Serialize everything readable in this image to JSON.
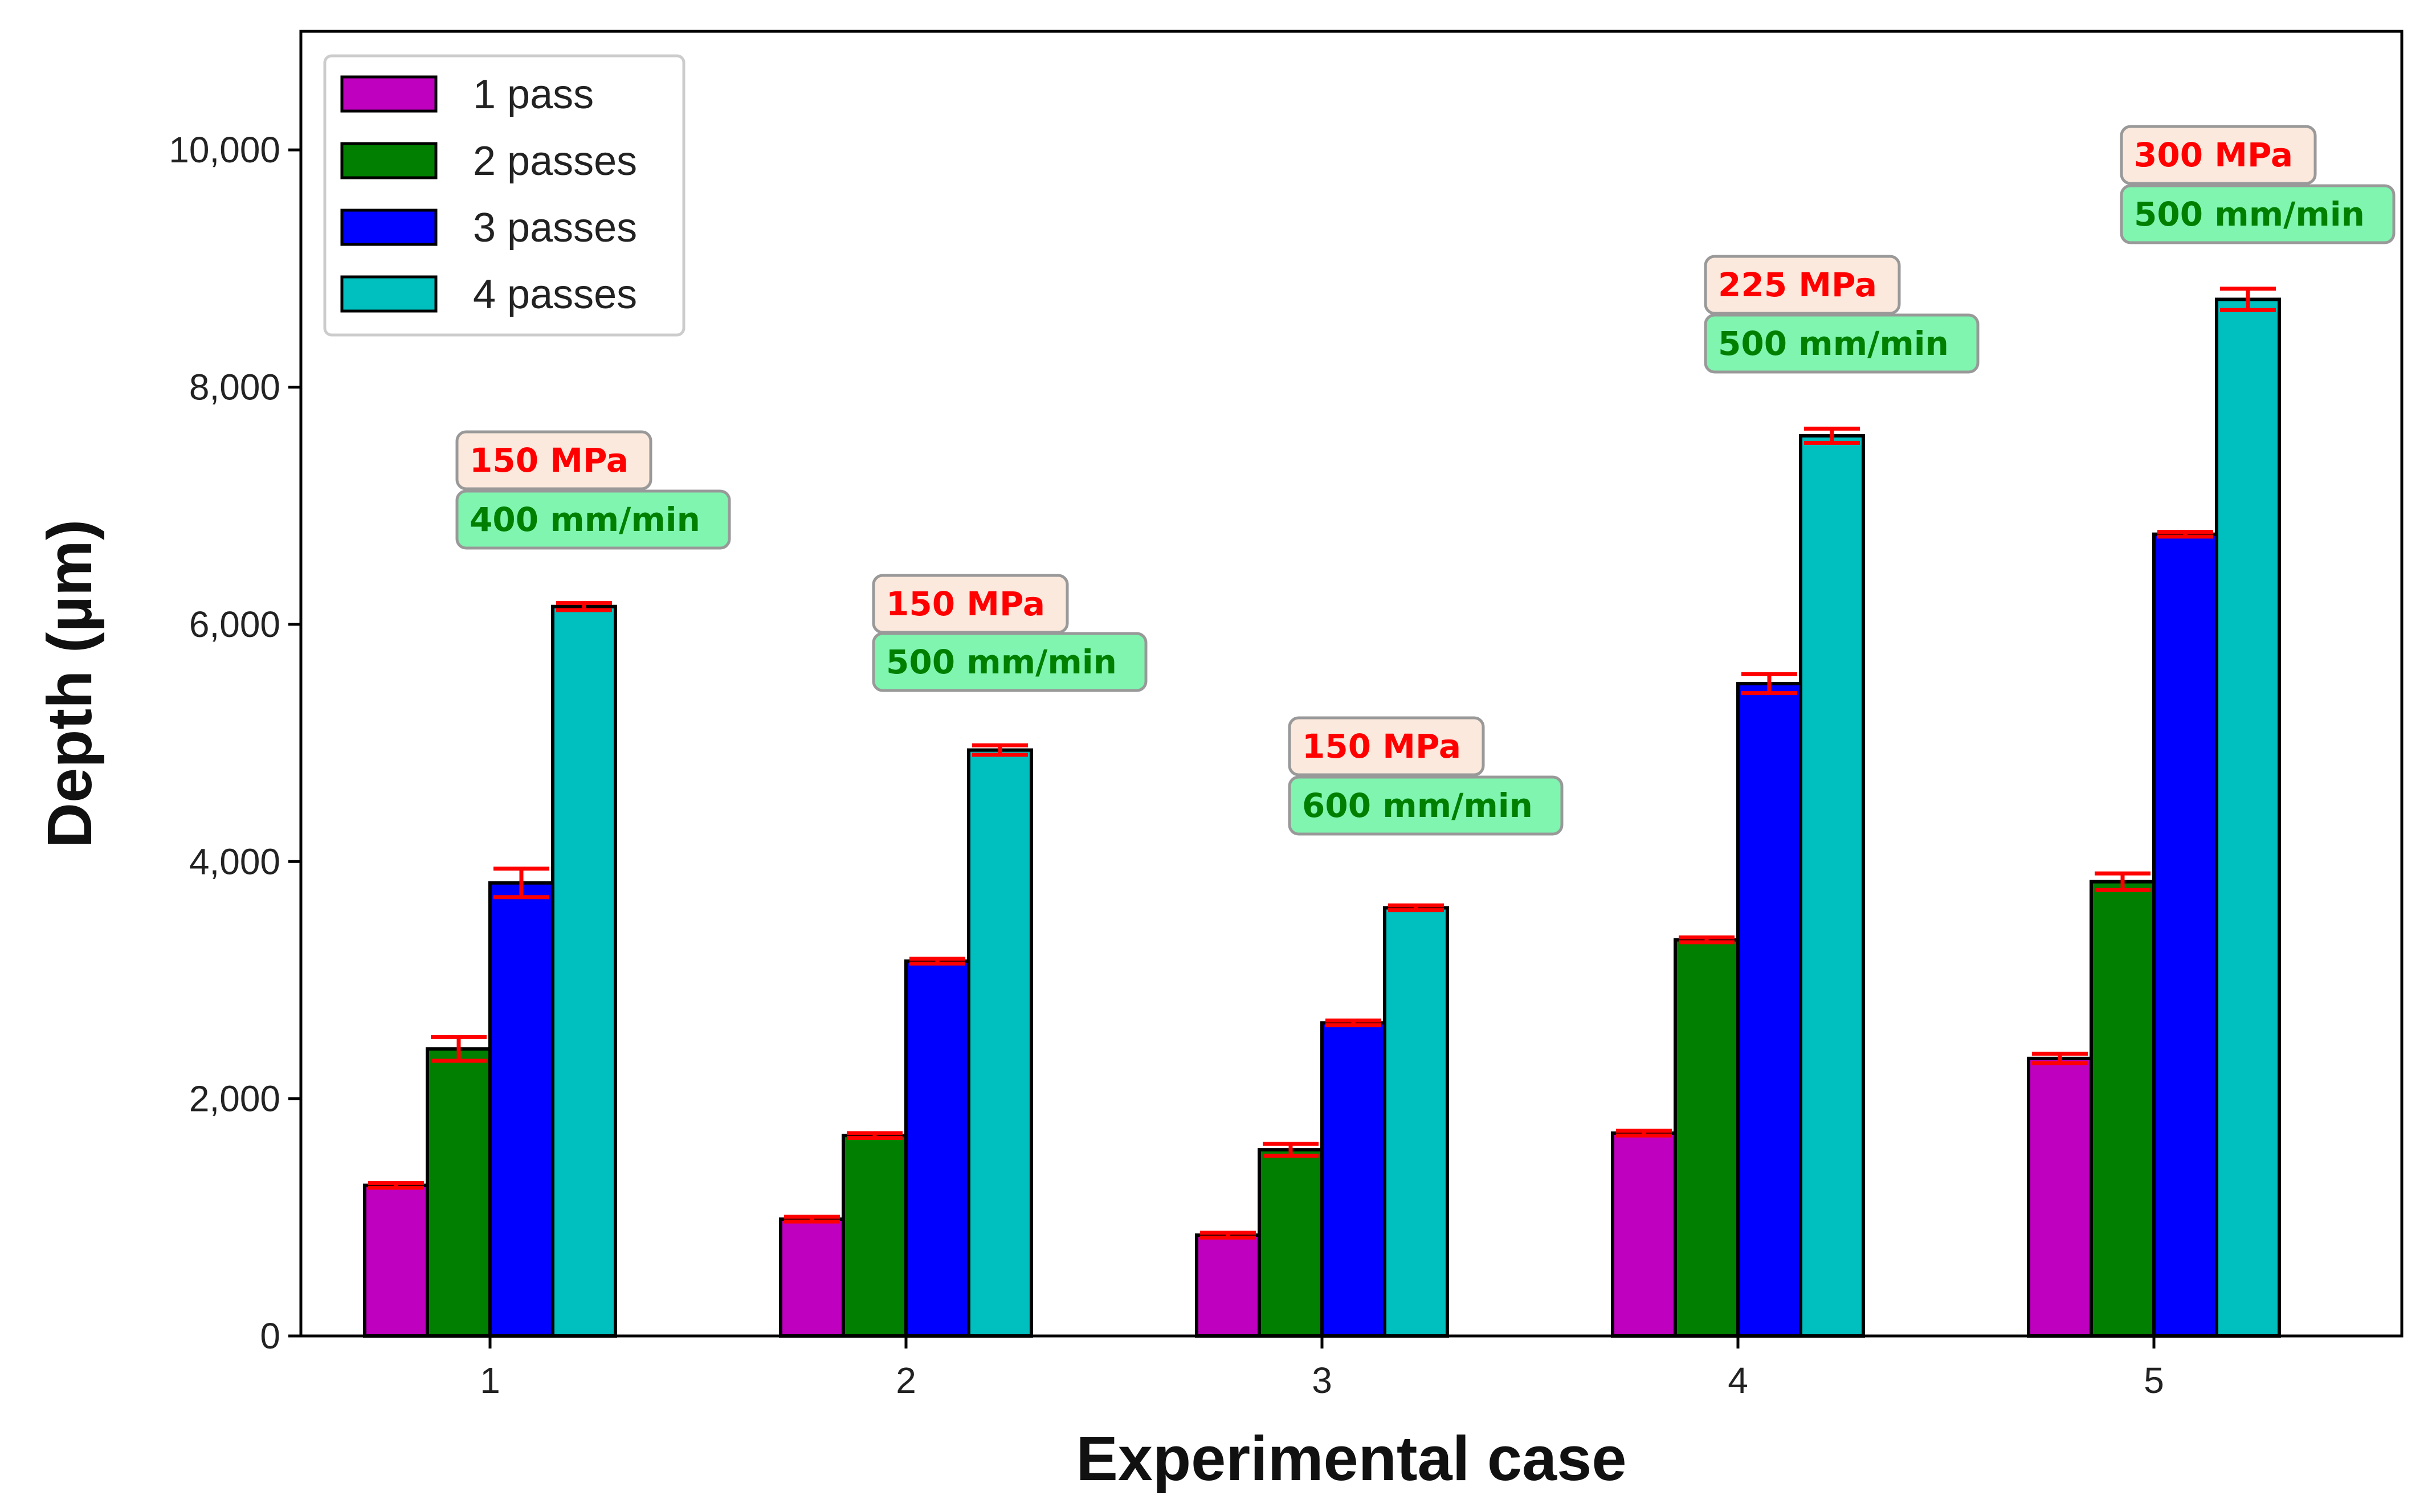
{
  "chart_data": {
    "type": "bar",
    "title": "",
    "xlabel": "Experimental case",
    "ylabel": "Depth (µm)",
    "categories": [
      "1",
      "2",
      "3",
      "4",
      "5"
    ],
    "ylim": [
      0,
      11000
    ],
    "yticks": [
      0,
      2000,
      4000,
      6000,
      8000,
      10000
    ],
    "ytick_labels": [
      "0",
      "2,000",
      "4,000",
      "6,000",
      "8,000",
      "10,000"
    ],
    "grid": false,
    "legend_position": "top-left",
    "series": [
      {
        "name": "1 pass",
        "color": "#bf00bf",
        "values": [
          1270,
          985,
          850,
          1710,
          2340
        ],
        "errors": [
          20,
          20,
          20,
          20,
          40
        ]
      },
      {
        "name": "2 passes",
        "color": "#007f00",
        "values": [
          2420,
          1690,
          1570,
          3340,
          3830
        ],
        "errors": [
          100,
          20,
          50,
          20,
          70
        ]
      },
      {
        "name": "3 passes",
        "color": "#0000ff",
        "values": [
          3820,
          3160,
          2640,
          5500,
          6760
        ],
        "errors": [
          120,
          20,
          20,
          80,
          20
        ]
      },
      {
        "name": "4 passes",
        "color": "#00bfbf",
        "values": [
          6150,
          4940,
          3610,
          7590,
          8740
        ],
        "errors": [
          30,
          40,
          20,
          60,
          90
        ]
      }
    ],
    "annotations": [
      {
        "category": "1",
        "pressure": "150 MPa",
        "speed": "400 mm/min"
      },
      {
        "category": "2",
        "pressure": "150 MPa",
        "speed": "500 mm/min"
      },
      {
        "category": "3",
        "pressure": "150 MPa",
        "speed": "600 mm/min"
      },
      {
        "category": "4",
        "pressure": "225 MPa",
        "speed": "500 mm/min"
      },
      {
        "category": "5",
        "pressure": "300 MPa",
        "speed": "500 mm/min"
      }
    ],
    "colors": {
      "errorbar": "#ff0000",
      "pressure_text": "#ff0000",
      "pressure_box": "#fbe9dd",
      "speed_text": "#007f00",
      "speed_box": "#7ff5b0"
    }
  }
}
